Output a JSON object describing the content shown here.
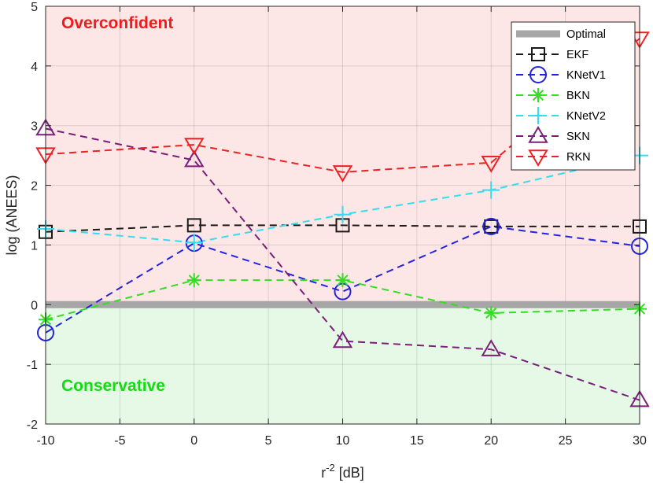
{
  "chart_data": {
    "type": "line",
    "xlabel": "r",
    "xlabel_sup": "-2",
    "xlabel_unit": " [dB]",
    "ylabel": "log (ANEES)",
    "xlim": [
      -10,
      30
    ],
    "ylim": [
      -2,
      5
    ],
    "x_ticks": [
      -10,
      -5,
      0,
      5,
      10,
      15,
      20,
      25,
      30
    ],
    "y_ticks": [
      -2,
      -1,
      0,
      1,
      2,
      3,
      4,
      5
    ],
    "grid": true,
    "legend_position": "top-right",
    "regions": {
      "overconfident": {
        "label": "Overconfident",
        "range": [
          0,
          5
        ],
        "fill": "#fde6e6",
        "text_color": "#ee1c1c"
      },
      "conservative": {
        "label": "Conservative",
        "range": [
          -2,
          0
        ],
        "fill": "#e6f9e6",
        "text_color": "#11dd11"
      }
    },
    "optimal": {
      "name": "Optimal",
      "value": 0,
      "color": "#a6a6a6"
    },
    "x": [
      -10,
      0,
      10,
      20,
      30
    ],
    "series": [
      {
        "name": "EKF",
        "values": [
          1.22,
          1.33,
          1.33,
          1.31,
          1.31
        ],
        "color": "#1a1a1a",
        "marker": "square"
      },
      {
        "name": "KNetV1",
        "values": [
          -0.47,
          1.03,
          0.22,
          1.31,
          0.98
        ],
        "color": "#2323dd",
        "marker": "circle"
      },
      {
        "name": "BKN",
        "values": [
          -0.25,
          0.41,
          0.41,
          -0.14,
          -0.07
        ],
        "color": "#33dd22",
        "marker": "star"
      },
      {
        "name": "KNetV2",
        "values": [
          1.27,
          1.04,
          1.51,
          1.92,
          2.5
        ],
        "color": "#33ddee",
        "marker": "plus"
      },
      {
        "name": "SKN",
        "values": [
          2.95,
          2.42,
          -0.61,
          -0.75,
          -1.6
        ],
        "color": "#7a1f7a",
        "marker": "triangle-up"
      },
      {
        "name": "RKN",
        "values": [
          2.52,
          2.68,
          2.22,
          2.38,
          4.46
        ],
        "color": "#ee2222",
        "marker": "triangle-down"
      }
    ]
  }
}
